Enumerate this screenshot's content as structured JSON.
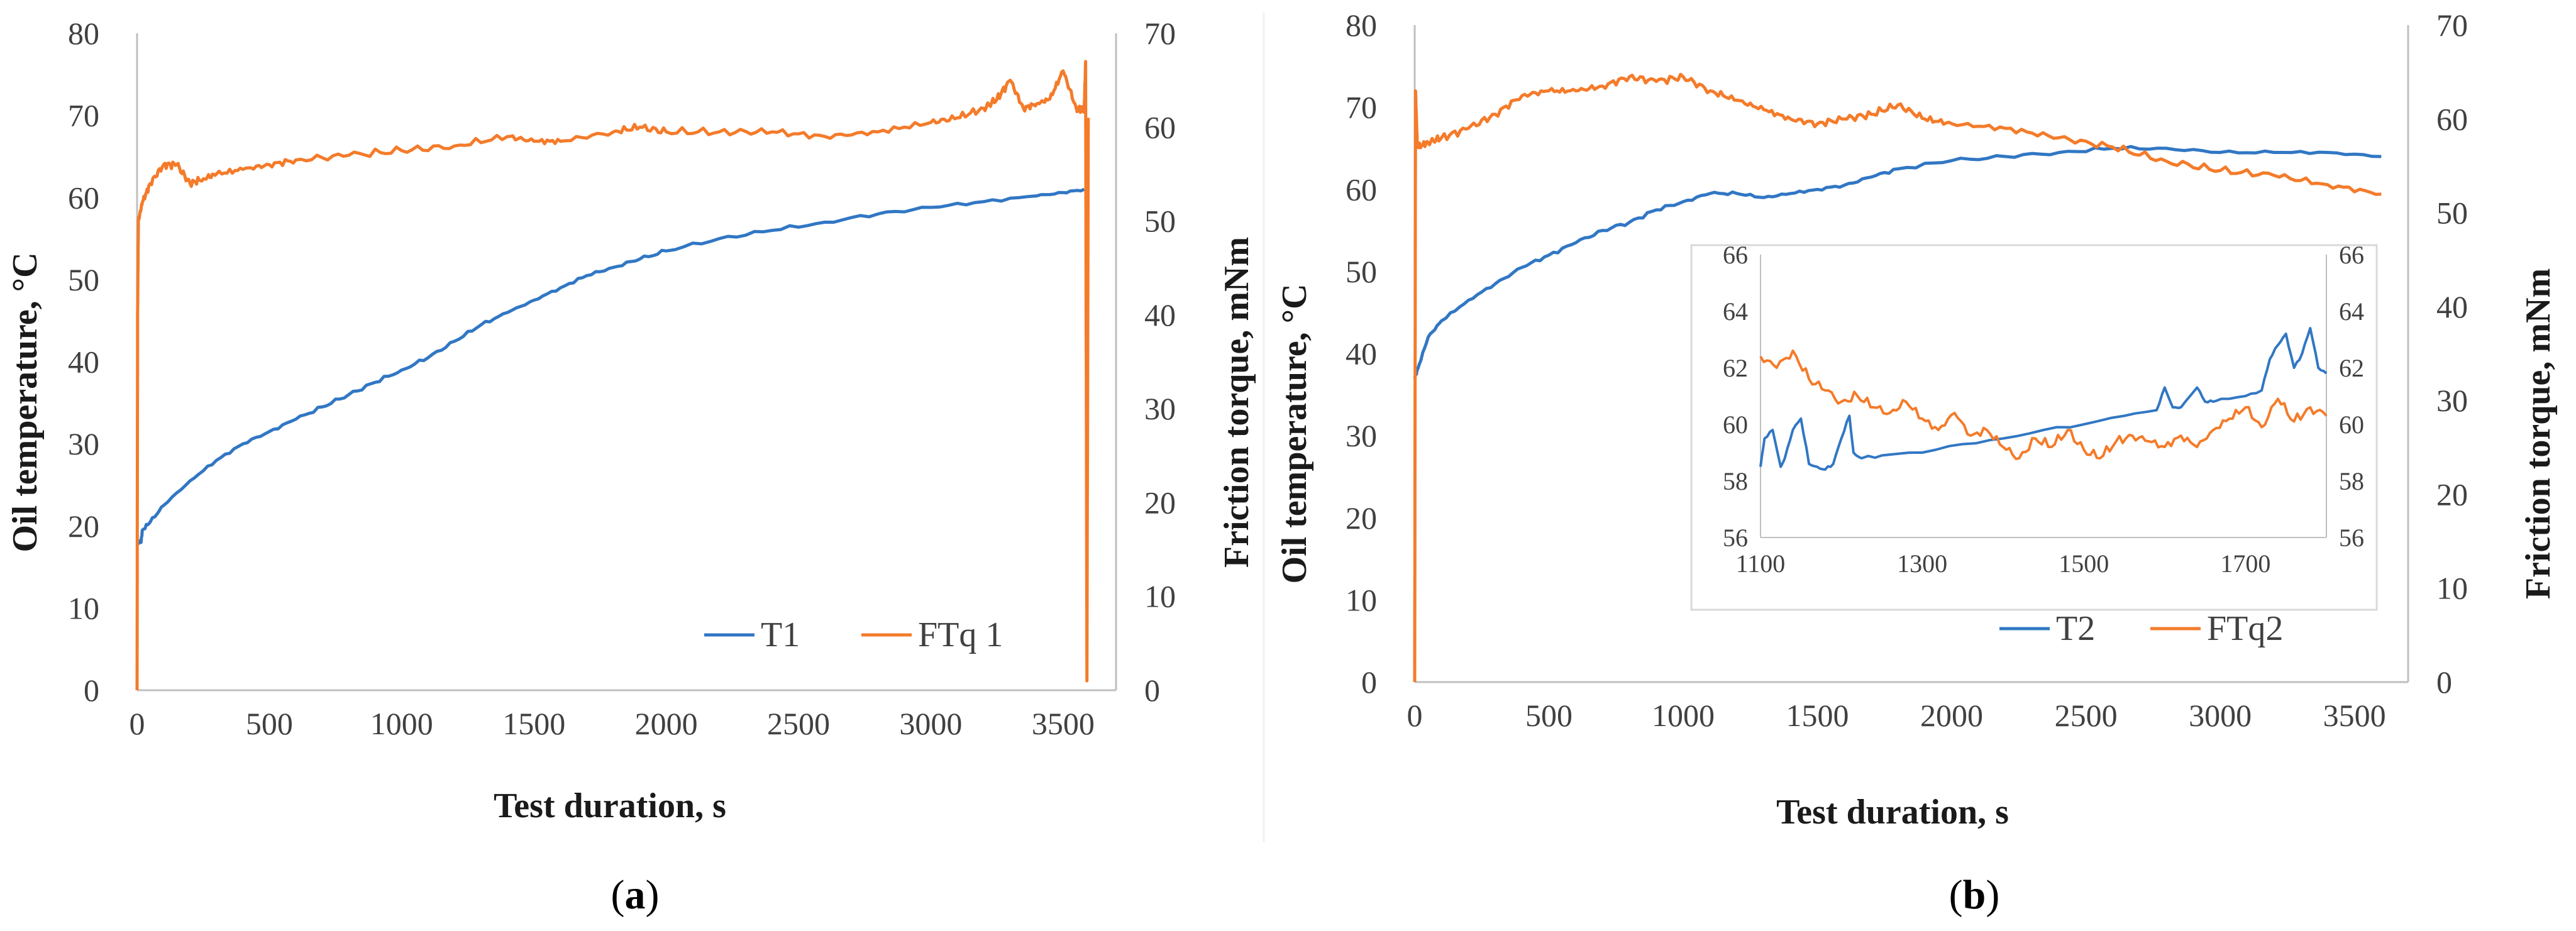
{
  "colors": {
    "t": "#3177c4",
    "ftq": "#f47b2a",
    "axis": "#bfbfbf",
    "grid": "#e6e6e6"
  },
  "chart_data": [
    {
      "id": "a",
      "type": "line",
      "caption_label": "a",
      "xlabel": "Test duration, s",
      "ylabel_left": "Oil temperature, °C",
      "ylabel_right": "Friction torque, mNm",
      "xlim": [
        0,
        3700
      ],
      "ylim_left": [
        0,
        80
      ],
      "ylim_right": [
        0,
        70
      ],
      "xticks": [
        0,
        500,
        1000,
        1500,
        2000,
        2500,
        3000,
        3500
      ],
      "yticks_left": [
        0,
        10,
        20,
        30,
        40,
        50,
        60,
        70,
        80
      ],
      "yticks_right": [
        0,
        10,
        20,
        30,
        40,
        50,
        60,
        70
      ],
      "legend_position": "bottom-right",
      "series": [
        {
          "name": "T1",
          "axis": "left",
          "color_key": "t",
          "x": [
            0,
            15,
            20,
            50,
            100,
            200,
            300,
            400,
            500,
            600,
            700,
            800,
            900,
            1000,
            1100,
            1200,
            1300,
            1400,
            1500,
            1600,
            1700,
            1800,
            1900,
            2000,
            2200,
            2400,
            2600,
            2800,
            3000,
            3200,
            3400,
            3500,
            3580
          ],
          "y": [
            18,
            18,
            19.5,
            20.5,
            22.5,
            25.5,
            28,
            30,
            31.5,
            33,
            34.5,
            36,
            37.5,
            39,
            40.5,
            42.5,
            44.5,
            46,
            47.5,
            49,
            50.5,
            51.5,
            52.5,
            53.5,
            55,
            56,
            57,
            58,
            58.8,
            59.5,
            60.2,
            60.6,
            61
          ]
        },
        {
          "name": "FTq 1",
          "axis": "right",
          "color_key": "ftq",
          "x": [
            0,
            2,
            5,
            20,
            50,
            100,
            150,
            200,
            250,
            300,
            400,
            500,
            600,
            800,
            1000,
            1200,
            1400,
            1500,
            1600,
            1800,
            1900,
            2000,
            2200,
            2400,
            2600,
            2800,
            3000,
            3100,
            3200,
            3250,
            3300,
            3350,
            3400,
            3450,
            3500,
            3550,
            3580,
            3585,
            3590,
            3595
          ],
          "y": [
            0,
            40,
            50,
            52,
            54,
            56,
            56,
            54,
            54.5,
            55,
            55.5,
            56,
            56.5,
            57,
            57.5,
            58,
            59,
            58.5,
            58.5,
            59.5,
            60,
            59.5,
            59.5,
            59.5,
            59,
            59.5,
            60.5,
            61,
            62,
            63,
            65,
            62,
            62.5,
            63,
            66,
            62,
            62,
            67,
            1,
            61
          ]
        }
      ]
    },
    {
      "id": "b",
      "type": "line",
      "caption_label": "b",
      "xlabel": "Test duration, s",
      "ylabel_left": "Oil temperature, °C",
      "ylabel_right": "Friction torque, mNm",
      "xlim": [
        0,
        3700
      ],
      "ylim_left": [
        0,
        80
      ],
      "ylim_right": [
        0,
        70
      ],
      "xticks": [
        0,
        500,
        1000,
        1500,
        2000,
        2500,
        3000,
        3500
      ],
      "yticks_left": [
        0,
        10,
        20,
        30,
        40,
        50,
        60,
        70,
        80
      ],
      "yticks_right": [
        0,
        10,
        20,
        30,
        40,
        50,
        60,
        70
      ],
      "legend_position": "bottom-right",
      "series": [
        {
          "name": "T2",
          "axis": "left",
          "color_key": "t",
          "x": [
            0,
            10,
            50,
            100,
            200,
            300,
            400,
            500,
            600,
            700,
            800,
            900,
            1000,
            1100,
            1200,
            1300,
            1400,
            1500,
            1600,
            1700,
            1800,
            2000,
            2200,
            2400,
            2600,
            2800,
            3000,
            3200,
            3400,
            3600
          ],
          "y": [
            37,
            38,
            42,
            44,
            46.5,
            48.5,
            50.5,
            52,
            53.5,
            55,
            56,
            57.5,
            58.5,
            59.5,
            59.5,
            59,
            59.5,
            60,
            60.5,
            61.5,
            62.5,
            63.5,
            64,
            64.5,
            65,
            65,
            64.5,
            64.5,
            64.5,
            64
          ]
        },
        {
          "name": "FTq2",
          "axis": "right",
          "color_key": "ftq",
          "x": [
            0,
            3,
            10,
            50,
            100,
            200,
            300,
            400,
            500,
            600,
            700,
            800,
            900,
            1000,
            1100,
            1200,
            1300,
            1400,
            1500,
            1600,
            1700,
            1800,
            1900,
            2000,
            2200,
            2400,
            2600,
            2800,
            3000,
            3200,
            3400,
            3600
          ],
          "y": [
            0,
            63,
            57,
            57.5,
            58,
            59,
            60.5,
            62.5,
            63,
            63,
            63.5,
            64.5,
            64,
            64.5,
            63,
            62,
            61,
            60,
            59.5,
            60,
            60.5,
            61.5,
            60,
            59.5,
            59,
            58,
            57,
            55.5,
            54.5,
            54,
            53,
            52
          ]
        }
      ],
      "inset": {
        "xlim": [
          1100,
          1800
        ],
        "ylim_left": [
          56,
          66
        ],
        "ylim_right": [
          56,
          66
        ],
        "xticks": [
          1100,
          1300,
          1500,
          1700
        ],
        "yticks_left": [
          56,
          58,
          60,
          62,
          64,
          66
        ],
        "yticks_right": [
          56,
          58,
          60,
          62,
          64,
          66
        ],
        "series": [
          {
            "name": "T2",
            "color_key": "t",
            "x": [
              1100,
              1105,
              1115,
              1125,
              1130,
              1140,
              1150,
              1160,
              1170,
              1180,
              1190,
              1200,
              1210,
              1215,
              1225,
              1250,
              1300,
              1350,
              1400,
              1450,
              1500,
              1550,
              1590,
              1600,
              1610,
              1620,
              1640,
              1650,
              1660,
              1670,
              1700,
              1720,
              1730,
              1740,
              1750,
              1760,
              1770,
              1780,
              1790,
              1800
            ],
            "y": [
              58.5,
              59.5,
              59.8,
              58.5,
              58.8,
              59.8,
              60.2,
              58.6,
              58.5,
              58.4,
              58.6,
              59.5,
              60.3,
              59,
              58.8,
              58.9,
              59,
              59.3,
              59.5,
              59.8,
              60,
              60.3,
              60.5,
              61.3,
              60.6,
              60.6,
              61.3,
              60.8,
              60.8,
              60.9,
              61,
              61.2,
              62.3,
              62.8,
              63.2,
              62,
              62.5,
              63.4,
              62,
              61.8
            ]
          },
          {
            "name": "FTq2",
            "color_key": "ftq",
            "x": [
              1100,
              1120,
              1140,
              1160,
              1180,
              1200,
              1220,
              1240,
              1260,
              1280,
              1300,
              1320,
              1340,
              1360,
              1380,
              1400,
              1420,
              1440,
              1460,
              1480,
              1500,
              1520,
              1540,
              1560,
              1580,
              1600,
              1620,
              1640,
              1660,
              1680,
              1700,
              1720,
              1740,
              1760,
              1780,
              1800
            ],
            "y": [
              62.4,
              62,
              62.6,
              61.6,
              61.2,
              60.8,
              61,
              60.6,
              60.4,
              60.8,
              60.2,
              59.8,
              60.4,
              59.6,
              59.8,
              59.2,
              58.8,
              59.5,
              59.2,
              59.8,
              59.1,
              58.8,
              59.4,
              59.6,
              59.4,
              59.2,
              59.6,
              59.2,
              59.8,
              60.2,
              60.6,
              59.9,
              60.9,
              60.1,
              60.6,
              60.3
            ]
          }
        ]
      }
    }
  ]
}
